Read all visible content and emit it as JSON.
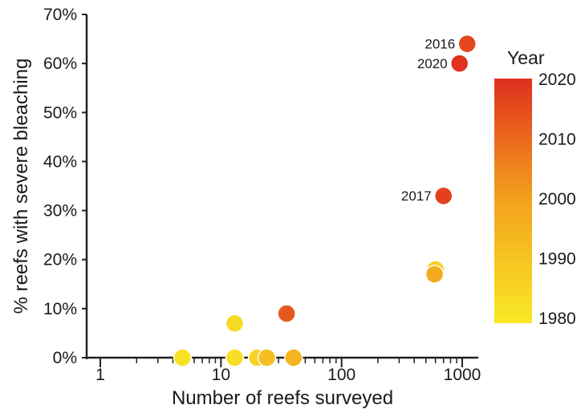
{
  "chart_data": {
    "type": "scatter",
    "xlabel": "Number of reefs surveyed",
    "ylabel": "% reefs with severe bleaching",
    "x_scale": "log",
    "xlim": [
      1,
      1300
    ],
    "ylim": [
      0,
      70
    ],
    "x_ticks": [
      "1",
      "10",
      "100",
      "1000"
    ],
    "x_tick_values": [
      1,
      10,
      100,
      1000
    ],
    "y_ticks": [
      "0%",
      "10%",
      "20%",
      "30%",
      "40%",
      "50%",
      "60%",
      "70%"
    ],
    "y_tick_values": [
      0,
      10,
      20,
      30,
      40,
      50,
      60,
      70
    ],
    "grid": false,
    "colorbar": {
      "title": "Year",
      "ticks": [
        "2020",
        "2010",
        "2000",
        "1990",
        "1980"
      ],
      "tick_values": [
        2020,
        2010,
        2000,
        1990,
        1980
      ],
      "range": [
        1980,
        2020
      ],
      "color_low": "#f9e826",
      "color_mid": "#f3a31d",
      "color_high": "#e0301e"
    },
    "points": [
      {
        "x": 4.8,
        "y": 0,
        "year": 1982
      },
      {
        "x": 13,
        "y": 7,
        "year": 1984
      },
      {
        "x": 13,
        "y": 0,
        "year": 1983
      },
      {
        "x": 20,
        "y": 0,
        "year": 1986
      },
      {
        "x": 24,
        "y": 0,
        "year": 1992
      },
      {
        "x": 35,
        "y": 9,
        "year": 2013
      },
      {
        "x": 40,
        "y": 0,
        "year": 1995
      },
      {
        "x": 600,
        "y": 18,
        "year": 1987
      },
      {
        "x": 590,
        "y": 17,
        "year": 1998
      },
      {
        "x": 700,
        "y": 33,
        "year": 2017,
        "label": "2017"
      },
      {
        "x": 1100,
        "y": 64,
        "year": 2016,
        "label": "2016"
      },
      {
        "x": 950,
        "y": 60,
        "year": 2020,
        "label": "2020"
      }
    ]
  }
}
